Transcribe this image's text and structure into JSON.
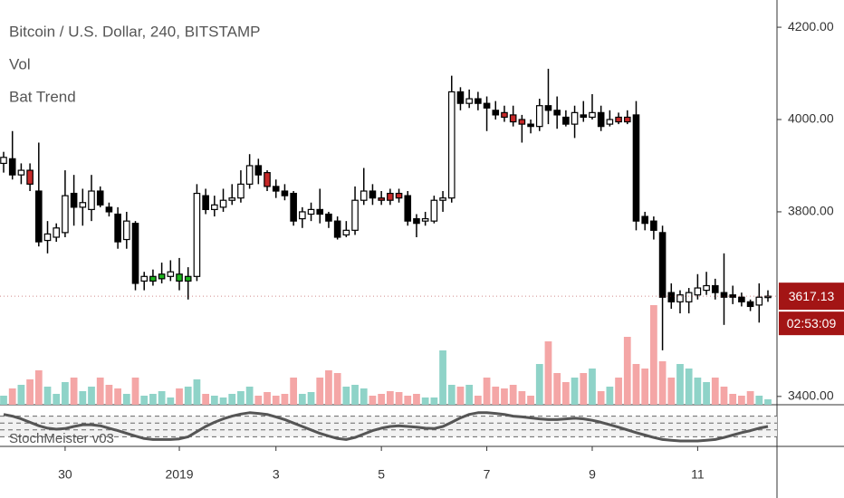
{
  "chart_data": {
    "type": "candlestick",
    "title": "Bitcoin / U.S. Dollar, 240, BITSTAMP",
    "indicators": [
      "Vol",
      "Bat Trend"
    ],
    "categories": [
      null,
      null,
      null,
      null,
      null,
      null,
      null,
      "30",
      null,
      null,
      null,
      null,
      null,
      null,
      null,
      null,
      null,
      null,
      null,
      null,
      "2019",
      null,
      null,
      null,
      null,
      null,
      null,
      null,
      null,
      null,
      null,
      "3",
      null,
      null,
      null,
      null,
      null,
      null,
      null,
      null,
      null,
      null,
      null,
      "5",
      null,
      null,
      null,
      null,
      null,
      null,
      null,
      null,
      null,
      null,
      null,
      "7",
      null,
      null,
      null,
      null,
      null,
      null,
      null,
      null,
      null,
      null,
      null,
      "9",
      null,
      null,
      null,
      null,
      null,
      null,
      null,
      null,
      null,
      null,
      null,
      "11",
      null,
      null,
      null,
      null,
      null,
      null,
      null,
      null
    ],
    "open": [
      3905,
      3915,
      3880,
      3890,
      3845,
      3738,
      3745,
      3755,
      3840,
      3810,
      3805,
      3845,
      3810,
      3795,
      3740,
      3775,
      3650,
      3650,
      3655,
      3660,
      3665,
      3650,
      3660,
      3835,
      3805,
      3810,
      3825,
      3830,
      3860,
      3900,
      3885,
      3855,
      3845,
      3840,
      3785,
      3795,
      3805,
      3795,
      3780,
      3750,
      3760,
      3825,
      3845,
      3830,
      3840,
      3840,
      3835,
      3785,
      3780,
      3780,
      3825,
      3830,
      4060,
      4035,
      4045,
      4035,
      4020,
      4015,
      4010,
      4000,
      3990,
      3985,
      4030,
      4020,
      4005,
      3990,
      4010,
      4005,
      4015,
      3990,
      4005,
      4005,
      4010,
      3790,
      3780,
      3755,
      3625,
      3605,
      3605,
      3620,
      3630,
      3640,
      3625,
      3620,
      3615,
      3605,
      3598,
      3615
    ],
    "high": [
      3930,
      3975,
      3905,
      3905,
      3950,
      3780,
      3775,
      3890,
      3880,
      3850,
      3880,
      3855,
      3820,
      3810,
      3800,
      3780,
      3670,
      3675,
      3690,
      3695,
      3700,
      3680,
      3860,
      3850,
      3835,
      3850,
      3860,
      3890,
      3925,
      3915,
      3890,
      3870,
      3860,
      3845,
      3810,
      3820,
      3850,
      3800,
      3790,
      3780,
      3855,
      3895,
      3860,
      3845,
      3850,
      3850,
      3845,
      3795,
      3800,
      3835,
      3845,
      4095,
      4070,
      4065,
      4060,
      4050,
      4040,
      4030,
      4030,
      4010,
      4000,
      4045,
      4110,
      4050,
      4020,
      4030,
      4040,
      4055,
      4030,
      4020,
      4015,
      4020,
      4040,
      3800,
      3790,
      3770,
      3645,
      3630,
      3635,
      3665,
      3670,
      3655,
      3710,
      3640,
      3625,
      3610,
      3645,
      3630
    ],
    "low": [
      3885,
      3870,
      3860,
      3845,
      3725,
      3710,
      3735,
      3745,
      3770,
      3770,
      3780,
      3810,
      3790,
      3720,
      3720,
      3630,
      3630,
      3640,
      3645,
      3650,
      3630,
      3610,
      3650,
      3795,
      3790,
      3800,
      3815,
      3820,
      3850,
      3860,
      3845,
      3830,
      3825,
      3770,
      3765,
      3780,
      3775,
      3765,
      3740,
      3745,
      3750,
      3815,
      3815,
      3815,
      3815,
      3820,
      3770,
      3745,
      3770,
      3775,
      3800,
      3820,
      4020,
      4025,
      4020,
      3975,
      4000,
      3995,
      3985,
      3950,
      3970,
      3975,
      3990,
      3980,
      3985,
      3960,
      3995,
      4000,
      3975,
      3985,
      3990,
      3990,
      3760,
      3760,
      3740,
      3500,
      3590,
      3580,
      3580,
      3610,
      3620,
      3610,
      3555,
      3600,
      3595,
      3585,
      3560,
      3605
    ],
    "close": [
      3918,
      3880,
      3890,
      3860,
      3735,
      3752,
      3765,
      3835,
      3810,
      3820,
      3845,
      3815,
      3800,
      3735,
      3780,
      3645,
      3660,
      3660,
      3665,
      3670,
      3650,
      3660,
      3840,
      3805,
      3815,
      3825,
      3830,
      3860,
      3900,
      3880,
      3855,
      3845,
      3835,
      3780,
      3800,
      3805,
      3795,
      3780,
      3745,
      3760,
      3825,
      3845,
      3830,
      3825,
      3825,
      3830,
      3780,
      3775,
      3785,
      3825,
      3830,
      4060,
      4035,
      4045,
      4035,
      4025,
      4010,
      4005,
      3995,
      3990,
      3985,
      4030,
      4020,
      4010,
      3990,
      4015,
      4005,
      4015,
      3985,
      4000,
      3995,
      3995,
      3780,
      3775,
      3760,
      3615,
      3605,
      3620,
      3625,
      3635,
      3640,
      3625,
      3615,
      3615,
      3605,
      3595,
      3615,
      3617.13
    ],
    "candle_colors": [
      "#ffffff",
      "#000000",
      "#ffffff",
      "#c62828",
      "#000000",
      "#ffffff",
      "#ffffff",
      "#ffffff",
      "#000000",
      "#ffffff",
      "#ffffff",
      "#000000",
      "#000000",
      "#000000",
      "#ffffff",
      "#000000",
      "#ffffff",
      "#1db41d",
      "#1db41d",
      "#ffffff",
      "#1db41d",
      "#1db41d",
      "#ffffff",
      "#000000",
      "#ffffff",
      "#ffffff",
      "#ffffff",
      "#ffffff",
      "#ffffff",
      "#000000",
      "#c62828",
      "#000000",
      "#000000",
      "#000000",
      "#ffffff",
      "#ffffff",
      "#000000",
      "#000000",
      "#000000",
      "#ffffff",
      "#ffffff",
      "#ffffff",
      "#000000",
      "#c62828",
      "#c62828",
      "#c62828",
      "#000000",
      "#000000",
      "#ffffff",
      "#ffffff",
      "#ffffff",
      "#ffffff",
      "#000000",
      "#ffffff",
      "#000000",
      "#000000",
      "#000000",
      "#c62828",
      "#c62828",
      "#c62828",
      "#000000",
      "#ffffff",
      "#000000",
      "#000000",
      "#000000",
      "#ffffff",
      "#000000",
      "#ffffff",
      "#000000",
      "#ffffff",
      "#c62828",
      "#c62828",
      "#000000",
      "#000000",
      "#000000",
      "#000000",
      "#000000",
      "#ffffff",
      "#ffffff",
      "#ffffff",
      "#ffffff",
      "#000000",
      "#000000",
      "#000000",
      "#000000",
      "#000000",
      "#ffffff",
      "#ffffff"
    ],
    "volume": [
      10,
      18,
      22,
      28,
      38,
      20,
      12,
      25,
      30,
      15,
      20,
      30,
      22,
      18,
      12,
      30,
      10,
      12,
      15,
      8,
      18,
      20,
      28,
      12,
      10,
      8,
      12,
      15,
      20,
      10,
      14,
      10,
      12,
      30,
      12,
      14,
      30,
      38,
      35,
      20,
      22,
      18,
      10,
      12,
      15,
      14,
      10,
      12,
      8,
      8,
      60,
      22,
      20,
      22,
      10,
      30,
      20,
      18,
      22,
      15,
      10,
      45,
      70,
      35,
      25,
      30,
      35,
      40,
      15,
      20,
      30,
      75,
      45,
      40,
      110,
      48,
      30,
      45,
      40,
      30,
      25,
      30,
      20,
      12,
      10,
      15,
      10,
      6
    ],
    "volume_ylim": [
      0,
      120
    ],
    "volume_up_color": "#8fd3c8",
    "volume_down_color": "#f4a6a6",
    "ylim": [
      3382,
      4259
    ],
    "yticks": [
      {
        "value": 4200,
        "label": "4200.00"
      },
      {
        "value": 4000,
        "label": "4000.00"
      },
      {
        "value": 3800,
        "label": "3800.00"
      },
      {
        "value": 3400,
        "label": "3400.00"
      }
    ],
    "last_price_label": "3617.13",
    "countdown": "02:53:09",
    "label_color": "#a31515",
    "stoch": {
      "name": "StochMeister v03",
      "ylim": [
        0,
        100
      ],
      "levels": [
        80,
        60,
        40,
        20
      ],
      "color": "#555555",
      "values": [
        85,
        80,
        72,
        62,
        52,
        45,
        42,
        44,
        50,
        55,
        55,
        52,
        45,
        38,
        30,
        22,
        15,
        12,
        12,
        12,
        14,
        20,
        35,
        50,
        62,
        72,
        80,
        86,
        90,
        88,
        85,
        78,
        70,
        60,
        50,
        40,
        30,
        22,
        15,
        12,
        18,
        28,
        38,
        45,
        50,
        52,
        50,
        48,
        45,
        44,
        50,
        62,
        75,
        85,
        90,
        90,
        88,
        85,
        80,
        78,
        75,
        72,
        70,
        70,
        72,
        74,
        72,
        68,
        62,
        55,
        48,
        40,
        32,
        25,
        18,
        12,
        10,
        8,
        8,
        8,
        10,
        12,
        18,
        25,
        32,
        38,
        45,
        50
      ]
    }
  }
}
